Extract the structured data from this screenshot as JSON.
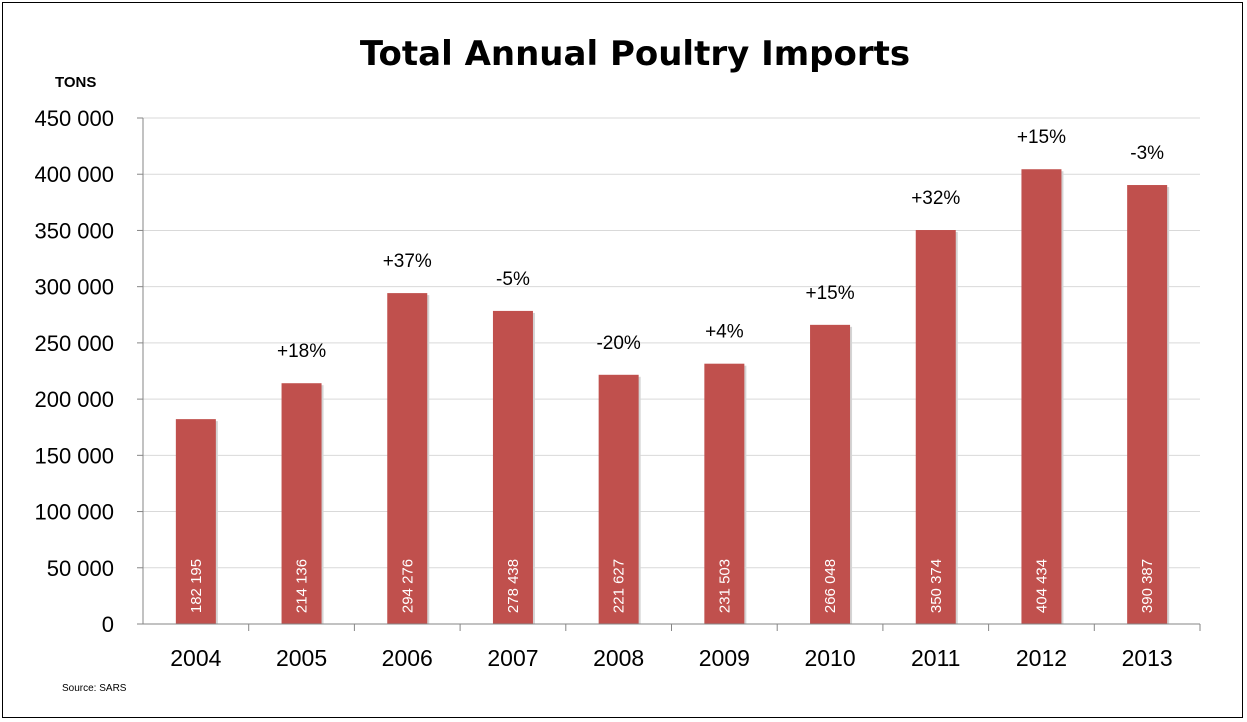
{
  "chart_data": {
    "type": "bar",
    "title": "Total Annual Poultry Imports",
    "ylabel": "TONS",
    "xlabel": "",
    "categories": [
      "2004",
      "2005",
      "2006",
      "2007",
      "2008",
      "2009",
      "2010",
      "2011",
      "2012",
      "2013"
    ],
    "values": [
      182195,
      214136,
      294276,
      278438,
      221627,
      231503,
      266048,
      350374,
      404434,
      390387
    ],
    "value_labels": [
      "182 195",
      "214 136",
      "294 276",
      "278 438",
      "221 627",
      "231 503",
      "266 048",
      "350 374",
      "404 434",
      "390 387"
    ],
    "change_labels": [
      "",
      "+18%",
      "+37%",
      "-5%",
      "-20%",
      "+4%",
      "+15%",
      "+32%",
      "+15%",
      "-3%"
    ],
    "ylim": [
      0,
      450000
    ],
    "yticks": [
      0,
      50000,
      100000,
      150000,
      200000,
      250000,
      300000,
      350000,
      400000,
      450000
    ],
    "ytick_labels": [
      "0",
      "50 000",
      "100 000",
      "150 000",
      "200 000",
      "250 000",
      "300 000",
      "350 000",
      "400 000",
      "450 000"
    ],
    "grid": true,
    "legend": "none",
    "bar_color": "#c0504d",
    "source": "Source: SARS"
  }
}
